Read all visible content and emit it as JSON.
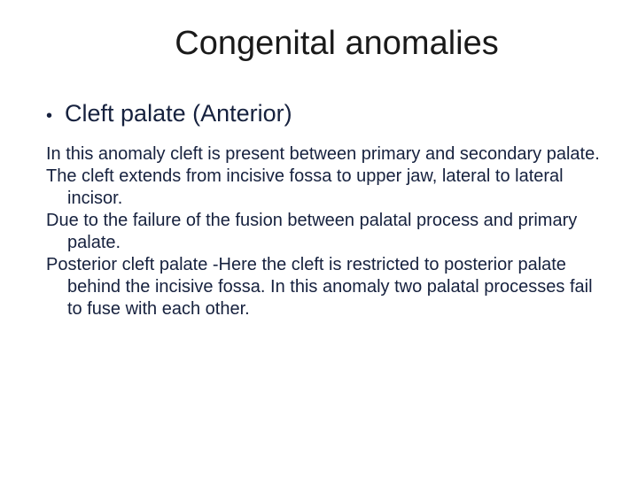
{
  "slide": {
    "title": "Congenital anomalies",
    "bullet": {
      "text": "Cleft palate (Anterior)"
    },
    "paragraphs": [
      "In this anomaly cleft is present between primary and secondary palate.",
      "The cleft extends from incisive fossa to upper jaw, lateral to lateral incisor.",
      "Due to the failure of the fusion between palatal process and primary palate.",
      "Posterior cleft palate -Here the cleft is restricted to posterior palate behind the incisive fossa. In this anomaly two palatal processes fail to fuse with each other."
    ]
  },
  "styling": {
    "background_color": "#ffffff",
    "title_color": "#1a1a1a",
    "text_color": "#16213e",
    "title_fontsize": 38,
    "bullet_fontsize": 27,
    "body_fontsize": 20,
    "font_family": "Arial"
  }
}
